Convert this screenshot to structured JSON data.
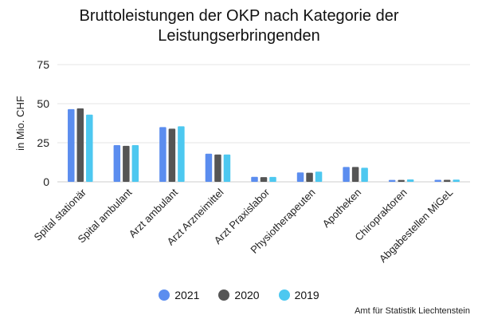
{
  "title_line1": "Bruttoleistungen der OKP nach Kategorie der",
  "title_line2": "Leistungserbringenden",
  "source": "Amt für Statistik Liechtenstein",
  "chart_data": {
    "type": "bar",
    "title": "Bruttoleistungen der OKP nach Kategorie der Leistungserbringenden",
    "ylabel": "in Mio. CHF",
    "ylim": [
      0,
      75
    ],
    "yticks": [
      0,
      25,
      50,
      75
    ],
    "grid": true,
    "legend_position": "bottom",
    "categories": [
      "Spital stationär",
      "Spital ambulant",
      "Arzt ambulant",
      "Arzt Arzneimittel",
      "Arzt Praxislabor",
      "Physiotherapeuten",
      "Apotheken",
      "Chiropraktoren",
      "Abgabestellen MiGeL"
    ],
    "series": [
      {
        "name": "2021",
        "color": "#5b8def",
        "values": [
          46.5,
          23.5,
          35.0,
          18.0,
          3.2,
          6.0,
          9.5,
          1.2,
          1.3
        ]
      },
      {
        "name": "2020",
        "color": "#555555",
        "values": [
          47.0,
          23.0,
          34.0,
          17.5,
          3.0,
          5.8,
          9.5,
          1.2,
          1.3
        ]
      },
      {
        "name": "2019",
        "color": "#4dc8f0",
        "values": [
          43.0,
          23.5,
          35.5,
          17.5,
          3.1,
          6.5,
          9.0,
          1.5,
          1.4
        ]
      }
    ]
  }
}
